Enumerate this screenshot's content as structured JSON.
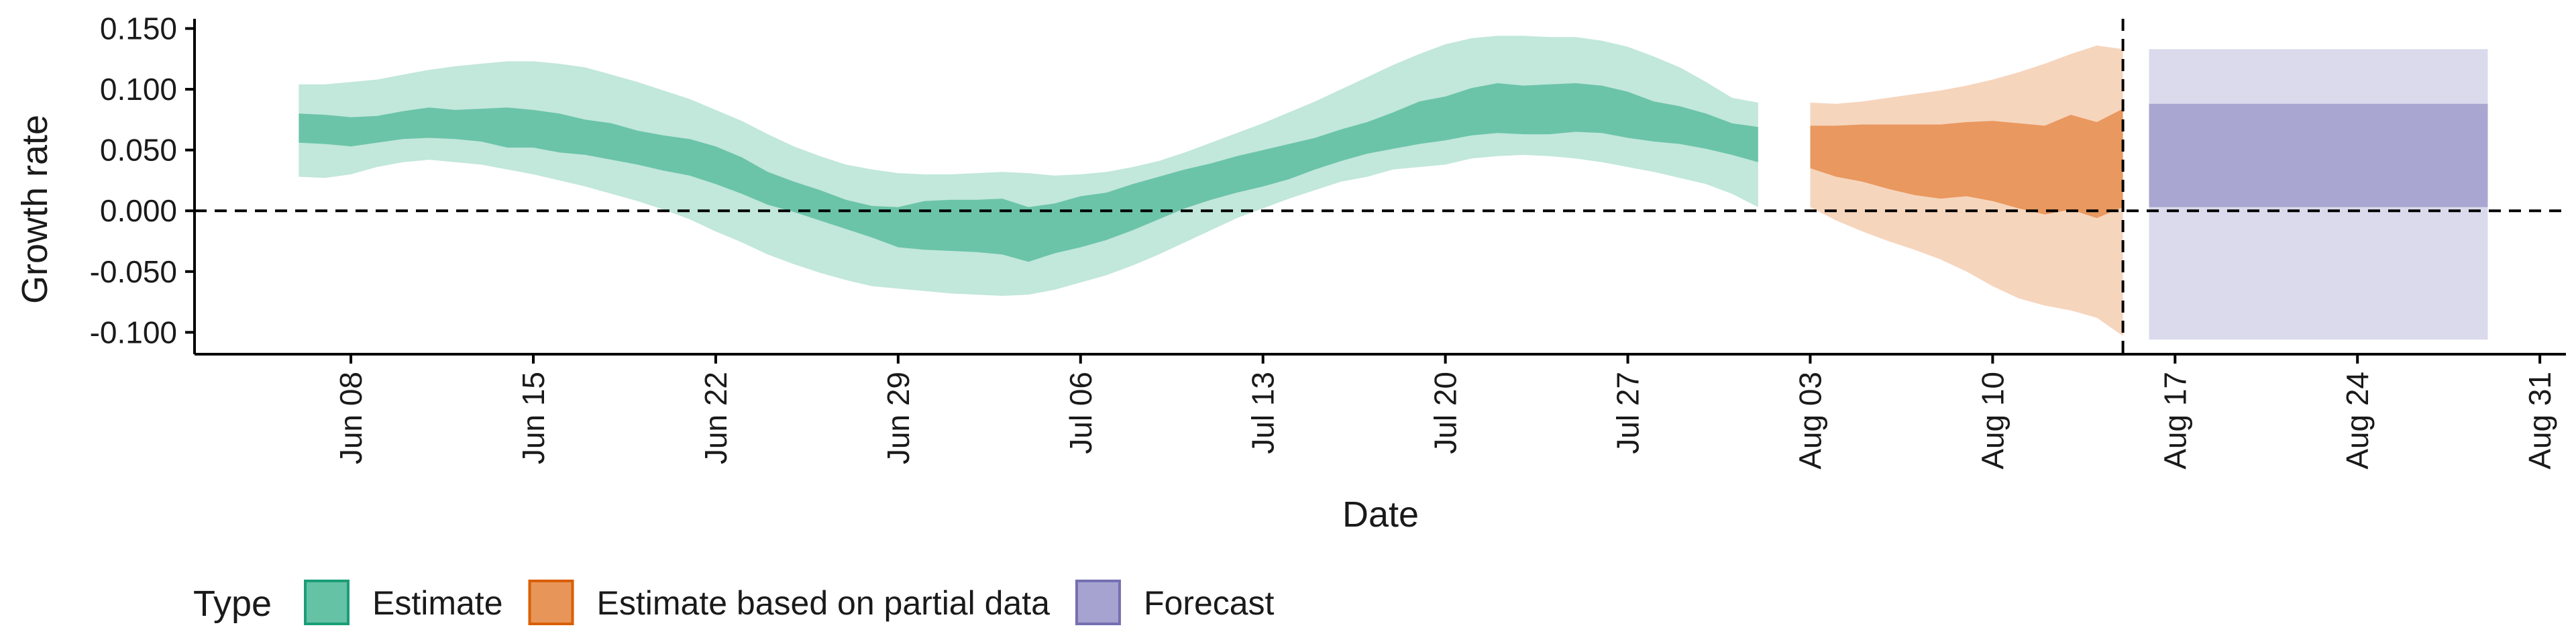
{
  "chart_data": {
    "type": "area",
    "xlabel": "Date",
    "ylabel": "Growth rate",
    "ylim": [
      -0.118,
      0.158
    ],
    "y_ticks": [
      -0.1,
      -0.05,
      0.0,
      0.05,
      0.1,
      0.15
    ],
    "y_tick_labels": [
      "-0.100",
      "-0.050",
      "0.000",
      "0.050",
      "0.100",
      "0.150"
    ],
    "x_range": [
      "2020-06-02",
      "2020-09-01"
    ],
    "x_ticks": [
      "2020-06-08",
      "2020-06-15",
      "2020-06-22",
      "2020-06-29",
      "2020-07-06",
      "2020-07-13",
      "2020-07-20",
      "2020-07-27",
      "2020-08-03",
      "2020-08-10",
      "2020-08-17",
      "2020-08-24",
      "2020-08-31"
    ],
    "x_tick_labels": [
      "Jun 08",
      "Jun 15",
      "Jun 22",
      "Jun 29",
      "Jul 06",
      "Jul 13",
      "Jul 20",
      "Jul 27",
      "Aug 03",
      "Aug 10",
      "Aug 17",
      "Aug 24",
      "Aug 31"
    ],
    "reference_lines": {
      "horizontal_y": 0.0,
      "vertical_date": "2020-08-15"
    },
    "grid": false,
    "legend": {
      "title": "Type",
      "placement": "bottom-left",
      "entries": [
        {
          "label": "Estimate",
          "fill": "#66c2a5",
          "stroke": "#1b9e77"
        },
        {
          "label": "Estimate based on partial data",
          "fill": "#e8955a",
          "stroke": "#d95f02"
        },
        {
          "label": "Forecast",
          "fill": "#a6a3d0",
          "stroke": "#7570b3"
        }
      ]
    },
    "series": [
      {
        "name": "Estimate",
        "color": "#66c2a5",
        "dates": [
          "2020-06-06",
          "2020-06-07",
          "2020-06-08",
          "2020-06-09",
          "2020-06-10",
          "2020-06-11",
          "2020-06-12",
          "2020-06-13",
          "2020-06-14",
          "2020-06-15",
          "2020-06-16",
          "2020-06-17",
          "2020-06-18",
          "2020-06-19",
          "2020-06-20",
          "2020-06-21",
          "2020-06-22",
          "2020-06-23",
          "2020-06-24",
          "2020-06-25",
          "2020-06-26",
          "2020-06-27",
          "2020-06-28",
          "2020-06-29",
          "2020-06-30",
          "2020-07-01",
          "2020-07-02",
          "2020-07-03",
          "2020-07-04",
          "2020-07-05",
          "2020-07-06",
          "2020-07-07",
          "2020-07-08",
          "2020-07-09",
          "2020-07-10",
          "2020-07-11",
          "2020-07-12",
          "2020-07-13",
          "2020-07-14",
          "2020-07-15",
          "2020-07-16",
          "2020-07-17",
          "2020-07-18",
          "2020-07-19",
          "2020-07-20",
          "2020-07-21",
          "2020-07-22",
          "2020-07-23",
          "2020-07-24",
          "2020-07-25",
          "2020-07-26",
          "2020-07-27",
          "2020-07-28",
          "2020-07-29",
          "2020-07-30",
          "2020-07-31",
          "2020-08-01"
        ],
        "outer_upper": [
          0.104,
          0.104,
          0.106,
          0.108,
          0.112,
          0.116,
          0.119,
          0.121,
          0.123,
          0.123,
          0.121,
          0.118,
          0.112,
          0.106,
          0.099,
          0.092,
          0.083,
          0.074,
          0.063,
          0.053,
          0.045,
          0.038,
          0.034,
          0.031,
          0.03,
          0.03,
          0.031,
          0.032,
          0.031,
          0.029,
          0.03,
          0.032,
          0.036,
          0.041,
          0.048,
          0.056,
          0.064,
          0.072,
          0.081,
          0.09,
          0.1,
          0.11,
          0.12,
          0.129,
          0.137,
          0.142,
          0.144,
          0.144,
          0.143,
          0.143,
          0.14,
          0.135,
          0.127,
          0.118,
          0.106,
          0.093,
          0.089
        ],
        "inner_upper": [
          0.08,
          0.079,
          0.077,
          0.078,
          0.082,
          0.085,
          0.083,
          0.084,
          0.085,
          0.083,
          0.08,
          0.075,
          0.072,
          0.066,
          0.062,
          0.059,
          0.053,
          0.044,
          0.032,
          0.024,
          0.017,
          0.009,
          0.004,
          0.003,
          0.008,
          0.009,
          0.009,
          0.01,
          0.003,
          0.006,
          0.012,
          0.015,
          0.022,
          0.028,
          0.034,
          0.039,
          0.045,
          0.05,
          0.055,
          0.06,
          0.067,
          0.073,
          0.081,
          0.09,
          0.094,
          0.101,
          0.105,
          0.103,
          0.104,
          0.105,
          0.103,
          0.098,
          0.09,
          0.086,
          0.08,
          0.072,
          0.069
        ],
        "inner_lower": [
          0.056,
          0.055,
          0.053,
          0.056,
          0.059,
          0.06,
          0.059,
          0.057,
          0.052,
          0.052,
          0.048,
          0.046,
          0.042,
          0.038,
          0.033,
          0.029,
          0.022,
          0.014,
          0.005,
          -0.001,
          -0.008,
          -0.015,
          -0.022,
          -0.03,
          -0.032,
          -0.033,
          -0.034,
          -0.036,
          -0.042,
          -0.035,
          -0.03,
          -0.024,
          -0.016,
          -0.007,
          0.002,
          0.009,
          0.015,
          0.02,
          0.026,
          0.034,
          0.041,
          0.047,
          0.051,
          0.055,
          0.058,
          0.062,
          0.064,
          0.063,
          0.063,
          0.065,
          0.064,
          0.06,
          0.057,
          0.055,
          0.051,
          0.046,
          0.04
        ],
        "outer_lower": [
          0.028,
          0.027,
          0.03,
          0.036,
          0.04,
          0.042,
          0.04,
          0.038,
          0.034,
          0.03,
          0.025,
          0.02,
          0.014,
          0.008,
          0.001,
          -0.007,
          -0.017,
          -0.026,
          -0.036,
          -0.044,
          -0.051,
          -0.057,
          -0.062,
          -0.064,
          -0.066,
          -0.068,
          -0.069,
          -0.07,
          -0.069,
          -0.065,
          -0.059,
          -0.053,
          -0.045,
          -0.036,
          -0.026,
          -0.016,
          -0.006,
          0.002,
          0.01,
          0.017,
          0.024,
          0.028,
          0.034,
          0.036,
          0.038,
          0.043,
          0.045,
          0.046,
          0.045,
          0.043,
          0.04,
          0.036,
          0.032,
          0.027,
          0.022,
          0.014,
          0.003
        ]
      },
      {
        "name": "Estimate based on partial data",
        "color": "#e8955a",
        "dates": [
          "2020-08-03",
          "2020-08-04",
          "2020-08-05",
          "2020-08-06",
          "2020-08-07",
          "2020-08-08",
          "2020-08-09",
          "2020-08-10",
          "2020-08-11",
          "2020-08-12",
          "2020-08-13",
          "2020-08-14",
          "2020-08-15"
        ],
        "outer_upper": [
          0.089,
          0.088,
          0.09,
          0.093,
          0.096,
          0.099,
          0.103,
          0.108,
          0.114,
          0.121,
          0.129,
          0.136,
          0.133
        ],
        "inner_upper": [
          0.07,
          0.07,
          0.071,
          0.071,
          0.071,
          0.071,
          0.073,
          0.074,
          0.072,
          0.07,
          0.079,
          0.073,
          0.084
        ],
        "inner_lower": [
          0.035,
          0.028,
          0.024,
          0.018,
          0.013,
          0.01,
          0.012,
          0.008,
          0.002,
          -0.003,
          0.001,
          -0.006,
          0.003
        ],
        "outer_lower": [
          0.003,
          -0.008,
          -0.017,
          -0.025,
          -0.032,
          -0.04,
          -0.05,
          -0.062,
          -0.072,
          -0.078,
          -0.082,
          -0.088,
          -0.103
        ]
      },
      {
        "name": "Forecast",
        "color": "#a6a3d0",
        "dates": [
          "2020-08-16",
          "2020-08-29"
        ],
        "outer_upper": [
          0.133,
          0.133
        ],
        "inner_upper": [
          0.088,
          0.088
        ],
        "inner_lower": [
          0.003,
          0.003
        ],
        "outer_lower": [
          -0.106,
          -0.106
        ]
      }
    ]
  }
}
